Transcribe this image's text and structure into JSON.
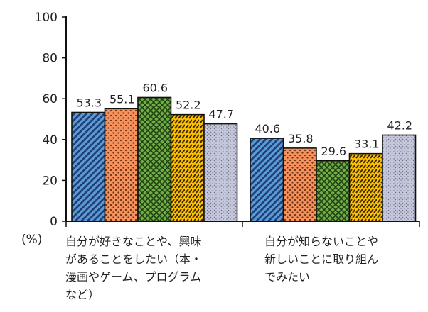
{
  "chart_data": {
    "type": "bar",
    "ylim": [
      0,
      100
    ],
    "yticks": [
      0,
      20,
      40,
      60,
      80,
      100
    ],
    "unit_label": "(%)",
    "categories": [
      {
        "label": "自分が好きなことや、興味があることをしたい（本・漫画やゲーム、プログラムなど）",
        "lines": [
          "自分が好きなことや、興味",
          "があることをしたい（本・",
          "漫画やゲーム、プログラム",
          "など）"
        ]
      },
      {
        "label": "自分が知らないことや新しいことに取り組んでみたい",
        "lines": [
          "自分が知らないことや",
          "新しいことに取り組ん",
          "でみたい"
        ]
      }
    ],
    "series": [
      {
        "values": [
          53.3,
          40.6
        ],
        "color": "#5b9bd5",
        "pattern": "diagonal-stripes"
      },
      {
        "values": [
          55.1,
          35.8
        ],
        "color": "#f4915c",
        "pattern": "dots"
      },
      {
        "values": [
          60.6,
          29.6
        ],
        "color": "#70ad47",
        "pattern": "crosshatch"
      },
      {
        "values": [
          52.2,
          33.1
        ],
        "color": "#ffc000",
        "pattern": "dashes"
      },
      {
        "values": [
          47.7,
          42.2
        ],
        "color": "#c5c8dd",
        "pattern": "fine-dots"
      }
    ]
  }
}
